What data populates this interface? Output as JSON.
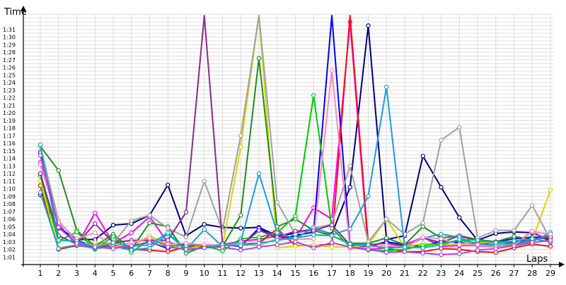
{
  "chart_data": {
    "type": "line",
    "ylabel": "Time",
    "xlabel": "Laps",
    "x": [
      1,
      2,
      3,
      4,
      5,
      6,
      7,
      8,
      9,
      10,
      11,
      12,
      13,
      14,
      15,
      16,
      17,
      18,
      19,
      20,
      21,
      22,
      23,
      24,
      25,
      26,
      27,
      28,
      29
    ],
    "x_ticks": [
      "1",
      "2",
      "3",
      "4",
      "5",
      "6",
      "7",
      "8",
      "9",
      "10",
      "11",
      "12",
      "13",
      "14",
      "15",
      "16",
      "17",
      "18",
      "19",
      "20",
      "21",
      "22",
      "23",
      "24",
      "25",
      "26",
      "27",
      "28",
      "29"
    ],
    "ylim": [
      60,
      98
    ],
    "y_ticks": [
      61,
      62,
      63,
      64,
      65,
      66,
      67,
      68,
      69,
      70,
      71,
      72,
      73,
      74,
      75,
      76,
      77,
      78,
      79,
      80,
      81,
      82,
      83,
      84,
      85,
      86,
      87,
      88,
      89,
      90,
      91
    ],
    "y_tick_labels": [
      "1:01",
      "1:02",
      "1:03",
      "1:04",
      "1:05",
      "1:06",
      "1:07",
      "1:08",
      "1:09",
      "1:10",
      "1:11",
      "1:12",
      "1:13",
      "1:14",
      "1:15",
      "1:16",
      "1:17",
      "1:18",
      "1:19",
      "1:20",
      "1:21",
      "1:22",
      "1:23",
      "1:24",
      "1:25",
      "1:26",
      "1:27",
      "1:28",
      "1:29",
      "1:30",
      "1:31"
    ],
    "grid": true,
    "series": [
      {
        "color": "#000080",
        "values": [
          69.2,
          64.8,
          63.3,
          63.3,
          65.2,
          65.4,
          66.5,
          70.5,
          63.8,
          65.3,
          64.9,
          64.8,
          64.9,
          63.8,
          64.1,
          64.8,
          64.0,
          70.2,
          91.5,
          63.3,
          63.8,
          74.3,
          70.2,
          66.2,
          63.2,
          64.1,
          64.3,
          64.2,
          63.2
        ]
      },
      {
        "color": "#ff00ff",
        "values": [
          73.5,
          65.3,
          62.5,
          66.8,
          62.8,
          64.2,
          66.3,
          62.9,
          62.5,
          62.5,
          62.6,
          63.1,
          63.3,
          63.8,
          63.4,
          67.5,
          66.0,
          92.0,
          62.0,
          62.2,
          62.6,
          63.6,
          62.4,
          62.5,
          62.5,
          62.3,
          62.6,
          64.4,
          62.9
        ]
      },
      {
        "color": "#0000ff",
        "values": [
          74.8,
          64.9,
          63.2,
          62.3,
          62.2,
          62.4,
          63.0,
          62.1,
          62.8,
          62.5,
          62.6,
          62.4,
          64.8,
          63.4,
          63.8,
          64.3,
          99.0,
          62.4,
          62.4,
          63.0,
          62.6,
          62.4,
          63.1,
          62.9,
          62.6,
          63.0,
          63.4,
          63.6,
          63.6
        ]
      },
      {
        "color": "#ee1111",
        "values": [
          70.4,
          62.0,
          62.5,
          62.2,
          62.6,
          62.0,
          61.9,
          61.7,
          62.3,
          62.4,
          62.5,
          62.7,
          62.8,
          64.7,
          62.5,
          62.5,
          62.7,
          95.0,
          62.8,
          62.1,
          61.7,
          61.7,
          62.1,
          62.0,
          61.7,
          61.6,
          62.2,
          62.7,
          62.4
        ]
      },
      {
        "color": "#d8d800",
        "values": [
          71.0,
          62.2,
          62.6,
          62.9,
          62.7,
          62.3,
          63.8,
          62.6,
          62.0,
          62.6,
          62.4,
          75.5,
          99.0,
          62.2,
          62.4,
          62.6,
          62.3,
          62.3,
          62.6,
          66.0,
          62.3,
          62.8,
          62.6,
          62.7,
          62.9,
          62.9,
          62.5,
          63.2,
          69.8
        ]
      },
      {
        "color": "#228b22",
        "values": [
          75.6,
          72.4,
          64.5,
          62.4,
          64.0,
          62.0,
          65.5,
          65.0,
          61.5,
          62.4,
          62.4,
          66.5,
          87.2,
          65.0,
          66.0,
          64.5,
          63.8,
          62.8,
          62.8,
          63.5,
          62.6,
          65.0,
          63.5,
          63.8,
          63.3,
          63.0,
          63.7,
          63.3,
          63.7
        ]
      },
      {
        "color": "#00cc00",
        "values": [
          71.7,
          63.1,
          64.3,
          62.0,
          63.7,
          61.6,
          63.3,
          62.5,
          62.5,
          62.5,
          61.8,
          63.4,
          63.6,
          64.2,
          66.4,
          82.3,
          64.8,
          62.3,
          61.9,
          61.8,
          62.0,
          62.5,
          62.8,
          63.2,
          62.8,
          62.4,
          62.6,
          63.1,
          63.9
        ]
      },
      {
        "color": "#a0a0a0",
        "values": [
          75.6,
          65.8,
          62.9,
          62.5,
          62.8,
          65.8,
          66.5,
          64.8,
          63.6,
          71.0,
          64.5,
          77.0,
          99.0,
          68.2,
          64.0,
          64.8,
          65.3,
          73.0,
          63.0,
          66.0,
          64.0,
          65.5,
          76.4,
          78.1,
          63.5,
          64.5,
          64.5,
          67.8,
          63.3
        ]
      },
      {
        "color": "#8b2a8b",
        "values": [
          72.0,
          63.8,
          62.7,
          65.4,
          62.9,
          63.2,
          63.2,
          63.2,
          66.9,
          98.4,
          62.8,
          62.5,
          64.5,
          63.6,
          64.4,
          64.5,
          65.2,
          62.6,
          62.6,
          62.8,
          62.4,
          63.5,
          62.9,
          63.8,
          63.1,
          63.0,
          62.9,
          63.3,
          63.6
        ]
      },
      {
        "color": "#1e9be0",
        "values": [
          69.5,
          62.1,
          62.6,
          62.1,
          62.4,
          61.9,
          62.2,
          64.0,
          62.0,
          64.6,
          62.4,
          63.0,
          72.0,
          64.2,
          63.4,
          64.9,
          63.9,
          64.7,
          69.0,
          83.4,
          62.3,
          63.5,
          64.0,
          63.6,
          62.6,
          62.7,
          62.8,
          63.0,
          64.2
        ]
      },
      {
        "color": "#ff88bb",
        "values": [
          73.2,
          65.5,
          63.4,
          64.2,
          62.2,
          62.9,
          63.5,
          62.7,
          62.8,
          62.6,
          62.6,
          62.7,
          62.5,
          63.4,
          63.3,
          63.4,
          85.6,
          62.1,
          62.3,
          62.5,
          62.3,
          63.6,
          63.4,
          62.6,
          62.6,
          62.3,
          62.5,
          64.4,
          64.0
        ]
      },
      {
        "color": "#00b8b0",
        "values": [
          75.8,
          63.2,
          63.1,
          62.2,
          62.9,
          62.4,
          62.6,
          64.2,
          61.9,
          62.2,
          62.6,
          62.5,
          62.8,
          63.2,
          63.5,
          63.9,
          63.8,
          62.7,
          62.6,
          62.1,
          62.3,
          62.2,
          62.6,
          63.3,
          63.2,
          62.9,
          63.1,
          63.4,
          63.0
        ]
      },
      {
        "color": "#b040e0",
        "values": [
          74.4,
          64.9,
          62.8,
          62.3,
          62.1,
          62.5,
          62.9,
          62.3,
          62.0,
          62.2,
          62.3,
          61.9,
          62.3,
          62.6,
          63.0,
          62.2,
          62.9,
          62.3,
          62.0,
          61.6,
          61.7,
          61.5,
          61.3,
          61.4,
          61.9,
          62.1,
          62.5,
          62.9,
          63.2
        ]
      }
    ]
  }
}
